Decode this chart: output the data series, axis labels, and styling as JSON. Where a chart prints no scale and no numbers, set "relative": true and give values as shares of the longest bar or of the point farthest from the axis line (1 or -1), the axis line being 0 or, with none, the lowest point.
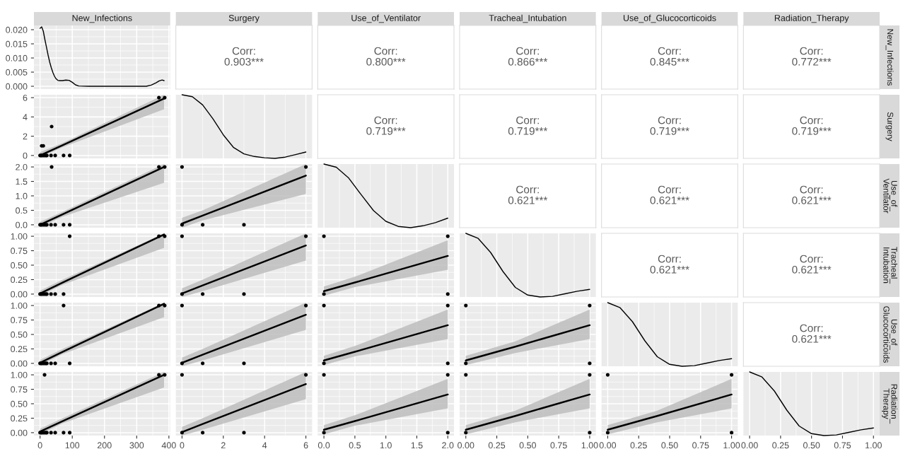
{
  "chart_data": [
    {
      "type": "line",
      "title": "New_Infections",
      "x": [
        0,
        5,
        10,
        15,
        20,
        25,
        30,
        35,
        40,
        45,
        50,
        55,
        60,
        70,
        80,
        90,
        100,
        110,
        120,
        150,
        250,
        330,
        345,
        360,
        370,
        379,
        385
      ],
      "values": [
        0.0205,
        0.021,
        0.0195,
        0.0165,
        0.0138,
        0.011,
        0.0085,
        0.0065,
        0.0048,
        0.0035,
        0.0026,
        0.0021,
        0.002,
        0.002,
        0.0022,
        0.0021,
        0.0014,
        0.0005,
        0.0001,
        0,
        0,
        0,
        0.0004,
        0.0012,
        0.0019,
        0.0022,
        0.002
      ],
      "color": "#000000",
      "xlim": [
        -19,
        404
      ],
      "xticks": [
        0,
        100,
        200,
        300,
        400
      ],
      "ylim": [
        -0.001,
        0.0215
      ],
      "yticks": [
        {
          "value": 0,
          "label": "0.000"
        },
        {
          "value": 0.005,
          "label": "0.005"
        },
        {
          "value": 0.01,
          "label": "0.010"
        },
        {
          "value": 0.015,
          "label": "0.015"
        },
        {
          "value": 0.02,
          "label": "0.020"
        }
      ],
      "grid": true,
      "tick_labels": "y"
    },
    {
      "type": "other",
      "title": "Surgery",
      "annotations": [
        "Corr:",
        "0.903***"
      ]
    },
    {
      "type": "other",
      "title": "Use_of_Ventilator",
      "annotations": [
        "Corr:",
        "0.800***"
      ]
    },
    {
      "type": "other",
      "title": "Tracheal_Intubation",
      "annotations": [
        "Corr:",
        "0.866***"
      ]
    },
    {
      "type": "other",
      "title": "Use_of_Glucocorticoids",
      "annotations": [
        "Corr:",
        "0.845***"
      ]
    },
    {
      "type": "other",
      "title": "Radiation_Therapy",
      "y2label": "New_Infections",
      "annotations": [
        "Corr:",
        "0.772***"
      ]
    },
    {
      "type": "scatter",
      "grid": true,
      "tick_labels": "y",
      "xlim": [
        -19,
        404
      ],
      "xticks": [
        0,
        100,
        200,
        300,
        400
      ],
      "ylim": [
        -0.3,
        6.3
      ],
      "yticks": [
        0,
        2,
        4,
        6
      ],
      "series": [
        {
          "type": "scatter",
          "marker": "circle",
          "x": [
            0,
            3,
            6,
            10,
            14,
            18,
            21,
            34,
            47,
            73,
            92,
            5,
            10,
            36,
            369,
            387
          ],
          "values": [
            0,
            0,
            0,
            0,
            0,
            0,
            0,
            0,
            0,
            0,
            0,
            1,
            1,
            3,
            6,
            6
          ],
          "color": "#000000"
        },
        {
          "type": "line",
          "x": [
            0,
            70,
            385
          ],
          "values": [
            0,
            1.07,
            5.9
          ],
          "lower": [
            -0.2,
            0.85,
            4.8
          ],
          "upper": [
            0.35,
            1.3,
            6.3
          ],
          "color": "#000000"
        }
      ]
    },
    {
      "type": "line",
      "relative": true,
      "x": [
        0,
        0.5,
        1,
        1.5,
        2,
        2.5,
        3,
        3.5,
        4,
        4.5,
        5,
        5.5,
        6
      ],
      "values": [
        1,
        0.97,
        0.84,
        0.62,
        0.37,
        0.17,
        0.07,
        0.03,
        0.01,
        0,
        0.02,
        0.06,
        0.1
      ],
      "color": "#000000",
      "xlim": [
        -0.3,
        6.3
      ],
      "xticks": [
        0,
        2,
        4,
        6
      ],
      "grid": "x",
      "tick_labels": false
    },
    {
      "type": "other",
      "annotations": [
        "Corr:",
        "0.719***"
      ]
    },
    {
      "type": "other",
      "annotations": [
        "Corr:",
        "0.719***"
      ]
    },
    {
      "type": "other",
      "annotations": [
        "Corr:",
        "0.719***"
      ]
    },
    {
      "type": "other",
      "y2label": "Surgery",
      "annotations": [
        "Corr:",
        "0.719***"
      ]
    },
    {
      "type": "scatter",
      "grid": true,
      "tick_labels": "y",
      "xlim": [
        -19,
        404
      ],
      "xticks": [
        0,
        100,
        200,
        300,
        400
      ],
      "ylim": [
        -0.1,
        2.1
      ],
      "yticks": [
        {
          "value": 0,
          "label": "0.0"
        },
        {
          "value": 0.5,
          "label": "0.5"
        },
        {
          "value": 1,
          "label": "1.0"
        },
        {
          "value": 1.5,
          "label": "1.5"
        },
        {
          "value": 2,
          "label": "2.0"
        }
      ],
      "series": [
        {
          "type": "scatter",
          "marker": "circle",
          "x": [
            0,
            3,
            6,
            10,
            14,
            18,
            21,
            34,
            47,
            73,
            92,
            36,
            369,
            387
          ],
          "values": [
            0,
            0,
            0,
            0,
            0,
            0,
            0,
            0,
            0,
            0,
            0,
            2,
            2,
            2
          ],
          "color": "#000000"
        },
        {
          "type": "line",
          "x": [
            0,
            70,
            385
          ],
          "values": [
            0,
            0.36,
            2.0
          ],
          "lower": [
            -0.08,
            0.28,
            1.45
          ],
          "upper": [
            0.1,
            0.45,
            2.1
          ],
          "color": "#000000"
        }
      ]
    },
    {
      "type": "scatter",
      "grid": true,
      "tick_labels": false,
      "xlim": [
        -0.3,
        6.3
      ],
      "xticks": [
        0,
        2,
        4,
        6
      ],
      "ylim": [
        -0.1,
        2.1
      ],
      "yticks": [
        0,
        0.5,
        1,
        1.5,
        2
      ],
      "series": [
        {
          "type": "scatter",
          "marker": "circle",
          "x": [
            0,
            1,
            3,
            0,
            6
          ],
          "values": [
            0,
            0,
            0,
            2,
            2
          ],
          "color": "#000000"
        },
        {
          "type": "line",
          "x": [
            0,
            1,
            6
          ],
          "values": [
            0.04,
            0.32,
            1.7
          ],
          "lower": [
            -0.1,
            0.15,
            1.07
          ],
          "upper": [
            0.24,
            0.5,
            2.1
          ],
          "color": "#000000"
        }
      ]
    },
    {
      "type": "line",
      "relative": true,
      "x": [
        0,
        0.2,
        0.4,
        0.6,
        0.8,
        1,
        1.2,
        1.4,
        1.6,
        1.8,
        2
      ],
      "values": [
        1,
        0.95,
        0.78,
        0.52,
        0.27,
        0.1,
        0.02,
        0,
        0.03,
        0.08,
        0.15
      ],
      "color": "#000000",
      "xlim": [
        -0.1,
        2.1
      ],
      "xticks": [
        0,
        0.5,
        1,
        1.5,
        2
      ],
      "grid": "x",
      "tick_labels": false
    },
    {
      "type": "other",
      "annotations": [
        "Corr:",
        "0.621***"
      ]
    },
    {
      "type": "other",
      "annotations": [
        "Corr:",
        "0.621***"
      ]
    },
    {
      "type": "other",
      "y2label": "Use_of_Ventilator",
      "annotations": [
        "Corr:",
        "0.621***"
      ]
    },
    {
      "type": "scatter",
      "grid": true,
      "tick_labels": "y",
      "xlim": [
        -19,
        404
      ],
      "xticks": [
        0,
        100,
        200,
        300,
        400
      ],
      "ylim": [
        -0.05,
        1.05
      ],
      "yticks": [
        {
          "value": 0,
          "label": "0.00"
        },
        {
          "value": 0.25,
          "label": "0.25"
        },
        {
          "value": 0.5,
          "label": "0.50"
        },
        {
          "value": 0.75,
          "label": "0.75"
        },
        {
          "value": 1,
          "label": "1.00"
        }
      ],
      "series": [
        {
          "type": "scatter",
          "marker": "circle",
          "x": [
            0,
            3,
            6,
            10,
            14,
            18,
            21,
            34,
            47,
            73,
            92,
            369,
            387
          ],
          "values": [
            0,
            0,
            0,
            0,
            0,
            0,
            0,
            0,
            0,
            0,
            1,
            1,
            1
          ],
          "color": "#000000"
        },
        {
          "type": "line",
          "x": [
            0,
            70,
            385
          ],
          "values": [
            0.01,
            0.2,
            1.03
          ],
          "lower": [
            -0.03,
            0.16,
            0.8
          ],
          "upper": [
            0.06,
            0.25,
            1.05
          ],
          "color": "#000000"
        }
      ]
    },
    {
      "type": "scatter",
      "grid": true,
      "tick_labels": false,
      "xlim": [
        -0.3,
        6.3
      ],
      "xticks": [
        0,
        2,
        4,
        6
      ],
      "ylim": [
        -0.05,
        1.05
      ],
      "yticks": [
        0,
        0.25,
        0.5,
        0.75,
        1
      ],
      "series": [
        {
          "type": "scatter",
          "marker": "circle",
          "x": [
            0,
            1,
            3,
            0,
            6
          ],
          "values": [
            0,
            0,
            0,
            1,
            1
          ],
          "color": "#000000"
        },
        {
          "type": "line",
          "x": [
            0,
            1,
            6
          ],
          "values": [
            0.01,
            0.15,
            0.84
          ],
          "lower": [
            -0.05,
            0.05,
            0.58
          ],
          "upper": [
            0.1,
            0.25,
            1.05
          ],
          "color": "#000000"
        }
      ]
    },
    {
      "type": "scatter",
      "grid": true,
      "tick_labels": false,
      "xlim": [
        -0.1,
        2.1
      ],
      "xticks": [
        0,
        0.5,
        1,
        1.5,
        2
      ],
      "ylim": [
        -0.05,
        1.05
      ],
      "yticks": [
        0,
        0.25,
        0.5,
        0.75,
        1
      ],
      "series": [
        {
          "type": "scatter",
          "marker": "circle",
          "x": [
            0,
            2,
            0,
            2
          ],
          "values": [
            0,
            0,
            1,
            1
          ],
          "color": "#000000"
        },
        {
          "type": "line",
          "x": [
            0,
            0.5,
            2
          ],
          "values": [
            0.05,
            0.2,
            0.66
          ],
          "lower": [
            -0.03,
            0.12,
            0.42
          ],
          "upper": [
            0.13,
            0.3,
            0.93
          ],
          "color": "#000000"
        }
      ]
    },
    {
      "type": "line",
      "relative": true,
      "x": [
        0,
        0.1,
        0.2,
        0.3,
        0.4,
        0.5,
        0.6,
        0.7,
        0.8,
        0.9,
        1
      ],
      "values": [
        1,
        0.92,
        0.7,
        0.4,
        0.15,
        0.03,
        0,
        0.01,
        0.05,
        0.09,
        0.12
      ],
      "color": "#000000",
      "xlim": [
        -0.05,
        1.05
      ],
      "xticks": [
        0,
        0.25,
        0.5,
        0.75,
        1
      ],
      "grid": "x",
      "tick_labels": false
    },
    {
      "type": "other",
      "annotations": [
        "Corr:",
        "0.621***"
      ]
    },
    {
      "type": "other",
      "y2label": "Tracheal_Intubation",
      "annotations": [
        "Corr:",
        "0.621***"
      ]
    },
    {
      "type": "scatter",
      "grid": true,
      "tick_labels": "y",
      "xlim": [
        -19,
        404
      ],
      "xticks": [
        0,
        100,
        200,
        300,
        400
      ],
      "ylim": [
        -0.05,
        1.05
      ],
      "yticks": [
        {
          "value": 0,
          "label": "0.00"
        },
        {
          "value": 0.25,
          "label": "0.25"
        },
        {
          "value": 0.5,
          "label": "0.50"
        },
        {
          "value": 0.75,
          "label": "0.75"
        },
        {
          "value": 1,
          "label": "1.00"
        }
      ],
      "series": [
        {
          "type": "scatter",
          "marker": "circle",
          "x": [
            0,
            3,
            6,
            10,
            14,
            18,
            21,
            34,
            47,
            92,
            73,
            369,
            387
          ],
          "values": [
            0,
            0,
            0,
            0,
            0,
            0,
            0,
            0,
            0,
            0,
            1,
            1,
            1
          ],
          "color": "#000000"
        },
        {
          "type": "line",
          "x": [
            0,
            70,
            385
          ],
          "values": [
            0.01,
            0.2,
            1.03
          ],
          "lower": [
            -0.03,
            0.16,
            0.8
          ],
          "upper": [
            0.06,
            0.25,
            1.05
          ],
          "color": "#000000"
        }
      ]
    },
    {
      "type": "scatter",
      "grid": true,
      "tick_labels": false,
      "xlim": [
        -0.3,
        6.3
      ],
      "xticks": [
        0,
        2,
        4,
        6
      ],
      "ylim": [
        -0.05,
        1.05
      ],
      "yticks": [
        0,
        0.25,
        0.5,
        0.75,
        1
      ],
      "series": [
        {
          "type": "scatter",
          "marker": "circle",
          "x": [
            0,
            1,
            3,
            0,
            6
          ],
          "values": [
            0,
            0,
            0,
            1,
            1
          ],
          "color": "#000000"
        },
        {
          "type": "line",
          "x": [
            0,
            1,
            6
          ],
          "values": [
            0.01,
            0.15,
            0.84
          ],
          "lower": [
            -0.05,
            0.05,
            0.58
          ],
          "upper": [
            0.1,
            0.25,
            1.05
          ],
          "color": "#000000"
        }
      ]
    },
    {
      "type": "scatter",
      "grid": true,
      "tick_labels": false,
      "xlim": [
        -0.1,
        2.1
      ],
      "xticks": [
        0,
        0.5,
        1,
        1.5,
        2
      ],
      "ylim": [
        -0.05,
        1.05
      ],
      "yticks": [
        0,
        0.25,
        0.5,
        0.75,
        1
      ],
      "series": [
        {
          "type": "scatter",
          "marker": "circle",
          "x": [
            0,
            2,
            0,
            2
          ],
          "values": [
            0,
            0,
            1,
            1
          ],
          "color": "#000000"
        },
        {
          "type": "line",
          "x": [
            0,
            0.5,
            2
          ],
          "values": [
            0.05,
            0.2,
            0.66
          ],
          "lower": [
            -0.03,
            0.12,
            0.42
          ],
          "upper": [
            0.13,
            0.3,
            0.93
          ],
          "color": "#000000"
        }
      ]
    },
    {
      "type": "scatter",
      "grid": true,
      "tick_labels": false,
      "xlim": [
        -0.05,
        1.05
      ],
      "xticks": [
        0,
        0.25,
        0.5,
        0.75,
        1
      ],
      "ylim": [
        -0.05,
        1.05
      ],
      "yticks": [
        0,
        0.25,
        0.5,
        0.75,
        1
      ],
      "series": [
        {
          "type": "scatter",
          "marker": "circle",
          "x": [
            0,
            0,
            1,
            1
          ],
          "values": [
            0,
            1,
            0,
            1
          ],
          "color": "#000000"
        },
        {
          "type": "line",
          "x": [
            0,
            0.4,
            1
          ],
          "values": [
            0.05,
            0.29,
            0.66
          ],
          "lower": [
            -0.03,
            0.18,
            0.42
          ],
          "upper": [
            0.13,
            0.38,
            0.93
          ],
          "color": "#000000"
        }
      ]
    },
    {
      "type": "line",
      "relative": true,
      "x": [
        0,
        0.1,
        0.2,
        0.3,
        0.4,
        0.5,
        0.6,
        0.7,
        0.8,
        0.9,
        1
      ],
      "values": [
        1,
        0.92,
        0.7,
        0.4,
        0.15,
        0.03,
        0,
        0.01,
        0.05,
        0.09,
        0.12
      ],
      "color": "#000000",
      "xlim": [
        -0.05,
        1.05
      ],
      "xticks": [
        0,
        0.25,
        0.5,
        0.75,
        1
      ],
      "grid": "x",
      "tick_labels": false
    },
    {
      "type": "other",
      "y2label": "Use_of_Glucocorticoids",
      "annotations": [
        "Corr:",
        "0.621***"
      ]
    },
    {
      "type": "scatter",
      "grid": true,
      "xlim": [
        -19,
        404
      ],
      "xticks": [
        0,
        100,
        200,
        300,
        400
      ],
      "ylim": [
        -0.05,
        1.05
      ],
      "yticks": [
        {
          "value": 0,
          "label": "0.00"
        },
        {
          "value": 0.25,
          "label": "0.25"
        },
        {
          "value": 0.5,
          "label": "0.50"
        },
        {
          "value": 0.75,
          "label": "0.75"
        },
        {
          "value": 1,
          "label": "1.00"
        }
      ],
      "series": [
        {
          "type": "scatter",
          "marker": "circle",
          "x": [
            0,
            3,
            6,
            10,
            14,
            18,
            21,
            34,
            47,
            73,
            92,
            14,
            369,
            387
          ],
          "values": [
            0,
            0,
            0,
            0,
            0,
            0,
            0,
            0,
            0,
            0,
            0,
            1,
            1,
            1
          ],
          "color": "#000000"
        },
        {
          "type": "line",
          "x": [
            0,
            70,
            385
          ],
          "values": [
            0.02,
            0.2,
            1.0
          ],
          "lower": [
            -0.03,
            0.16,
            0.78
          ],
          "upper": [
            0.07,
            0.25,
            1.05
          ],
          "color": "#000000"
        }
      ]
    },
    {
      "type": "scatter",
      "grid": true,
      "tick_labels": "x",
      "xlim": [
        -0.3,
        6.3
      ],
      "xticks": [
        0,
        2,
        4,
        6
      ],
      "ylim": [
        -0.05,
        1.05
      ],
      "yticks": [
        0,
        0.25,
        0.5,
        0.75,
        1
      ],
      "series": [
        {
          "type": "scatter",
          "marker": "circle",
          "x": [
            0,
            1,
            3,
            0,
            6
          ],
          "values": [
            0,
            0,
            0,
            1,
            1
          ],
          "color": "#000000"
        },
        {
          "type": "line",
          "x": [
            0,
            1,
            6
          ],
          "values": [
            0.01,
            0.15,
            0.84
          ],
          "lower": [
            -0.05,
            0.05,
            0.58
          ],
          "upper": [
            0.1,
            0.25,
            1.05
          ],
          "color": "#000000"
        }
      ]
    },
    {
      "type": "scatter",
      "grid": true,
      "tick_labels": "x",
      "xlim": [
        -0.1,
        2.1
      ],
      "xticks": [
        {
          "value": 0,
          "label": "0.0"
        },
        {
          "value": 0.5,
          "label": "0.5"
        },
        {
          "value": 1,
          "label": "1.0"
        },
        {
          "value": 1.5,
          "label": "1.5"
        },
        {
          "value": 2,
          "label": "2.0"
        }
      ],
      "ylim": [
        -0.05,
        1.05
      ],
      "yticks": [
        0,
        0.25,
        0.5,
        0.75,
        1
      ],
      "series": [
        {
          "type": "scatter",
          "marker": "circle",
          "x": [
            0,
            2,
            0,
            2
          ],
          "values": [
            0,
            0,
            1,
            1
          ],
          "color": "#000000"
        },
        {
          "type": "line",
          "x": [
            0,
            0.5,
            2
          ],
          "values": [
            0.05,
            0.2,
            0.66
          ],
          "lower": [
            -0.03,
            0.12,
            0.42
          ],
          "upper": [
            0.13,
            0.3,
            0.93
          ],
          "color": "#000000"
        }
      ]
    },
    {
      "type": "scatter",
      "grid": true,
      "tick_labels": "x",
      "xlim": [
        -0.05,
        1.05
      ],
      "xticks": [
        {
          "value": 0,
          "label": "0.00"
        },
        {
          "value": 0.25,
          "label": "0.25"
        },
        {
          "value": 0.5,
          "label": "0.50"
        },
        {
          "value": 0.75,
          "label": "0.75"
        },
        {
          "value": 1,
          "label": "1.00"
        }
      ],
      "ylim": [
        -0.05,
        1.05
      ],
      "yticks": [
        0,
        0.25,
        0.5,
        0.75,
        1
      ],
      "series": [
        {
          "type": "scatter",
          "marker": "circle",
          "x": [
            0,
            0,
            1,
            1
          ],
          "values": [
            0,
            1,
            0,
            1
          ],
          "color": "#000000"
        },
        {
          "type": "line",
          "x": [
            0,
            0.4,
            1
          ],
          "values": [
            0.05,
            0.29,
            0.66
          ],
          "lower": [
            -0.03,
            0.18,
            0.42
          ],
          "upper": [
            0.13,
            0.38,
            0.93
          ],
          "color": "#000000"
        }
      ]
    },
    {
      "type": "scatter",
      "grid": true,
      "tick_labels": "x",
      "xlim": [
        -0.05,
        1.05
      ],
      "xticks": [
        {
          "value": 0,
          "label": "0.00"
        },
        {
          "value": 0.25,
          "label": "0.25"
        },
        {
          "value": 0.5,
          "label": "0.50"
        },
        {
          "value": 0.75,
          "label": "0.75"
        },
        {
          "value": 1,
          "label": "1.00"
        }
      ],
      "ylim": [
        -0.05,
        1.05
      ],
      "yticks": [
        0,
        0.25,
        0.5,
        0.75,
        1
      ],
      "series": [
        {
          "type": "scatter",
          "marker": "circle",
          "x": [
            0,
            0,
            1,
            1
          ],
          "values": [
            0,
            1,
            0,
            1
          ],
          "color": "#000000"
        },
        {
          "type": "line",
          "x": [
            0,
            0.4,
            1
          ],
          "values": [
            0.05,
            0.29,
            0.66
          ],
          "lower": [
            -0.03,
            0.18,
            0.42
          ],
          "upper": [
            0.13,
            0.38,
            0.93
          ],
          "color": "#000000"
        }
      ]
    },
    {
      "type": "line",
      "relative": true,
      "y2label": "Radiation_Therapy",
      "x": [
        0,
        0.1,
        0.2,
        0.3,
        0.4,
        0.5,
        0.6,
        0.7,
        0.8,
        0.9,
        1
      ],
      "values": [
        1,
        0.92,
        0.7,
        0.4,
        0.15,
        0.03,
        0,
        0.01,
        0.05,
        0.09,
        0.12
      ],
      "color": "#000000",
      "xlim": [
        -0.05,
        1.05
      ],
      "xticks": [
        {
          "value": 0,
          "label": "0.00"
        },
        {
          "value": 0.25,
          "label": "0.25"
        },
        {
          "value": 0.5,
          "label": "0.50"
        },
        {
          "value": 0.75,
          "label": "0.75"
        },
        {
          "value": 1,
          "label": "1.00"
        }
      ],
      "grid": "x",
      "tick_labels": "x"
    }
  ]
}
